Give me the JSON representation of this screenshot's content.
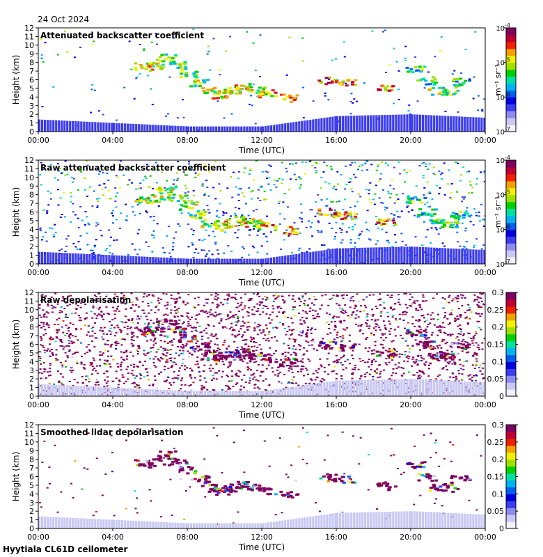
{
  "header": {
    "date": "24 Oct 2024"
  },
  "footer": {
    "station": "Hyytiala CL61D ceilometer"
  },
  "colormaps": {
    "rainbow": [
      "#f0f0f8",
      "#c8c8f4",
      "#8c8cf0",
      "#3c3cf0",
      "#0000e0",
      "#0060f0",
      "#00b4f0",
      "#00e0a0",
      "#00d000",
      "#a0e000",
      "#f0f000",
      "#f0a000",
      "#f02000",
      "#c00030",
      "#800060"
    ]
  },
  "colors": {
    "background": "#ffffff",
    "panel_bg": "#ffffff",
    "axis": "#000000"
  },
  "chart_data": [
    {
      "type": "heatmap",
      "title": "Attenuated backscatter coefficient",
      "xlabel": "Time (UTC)",
      "ylabel": "Height (km)",
      "xticks": [
        "00:00",
        "04:00",
        "08:00",
        "12:00",
        "16:00",
        "20:00",
        "00:00"
      ],
      "xlim_hours": [
        0,
        24
      ],
      "ylim": [
        0,
        12
      ],
      "yticks": [
        "0",
        "1",
        "2",
        "3",
        "4",
        "5",
        "6",
        "7",
        "8",
        "9",
        "10",
        "11",
        "12"
      ],
      "colorbar": {
        "scale": "log",
        "range": [
          1e-07,
          0.0001
        ],
        "ticks": [
          {
            "base": "10",
            "exp": "-4",
            "value": -4
          },
          {
            "base": "10",
            "exp": "-5",
            "value": -5
          },
          {
            "base": "10",
            "exp": "-6",
            "value": -6
          },
          {
            "base": "10",
            "exp": "-7",
            "value": -7
          }
        ],
        "label": "m⁻¹ sr⁻¹"
      },
      "cloud_layers": [
        {
          "hour": 5.6,
          "height": 7.6,
          "level": 0.82
        },
        {
          "hour": 6.2,
          "height": 7.7,
          "level": 0.82
        },
        {
          "hour": 6.8,
          "height": 8.6,
          "level": 0.8
        },
        {
          "hour": 7.4,
          "height": 7.8,
          "level": 0.78
        },
        {
          "hour": 8.0,
          "height": 6.8,
          "level": 0.75
        },
        {
          "hour": 8.6,
          "height": 5.8,
          "level": 0.75
        },
        {
          "hour": 9.2,
          "height": 4.8,
          "level": 0.8
        },
        {
          "hour": 9.8,
          "height": 4.4,
          "level": 0.85
        },
        {
          "hour": 10.4,
          "height": 4.8,
          "level": 0.85
        },
        {
          "hour": 11.0,
          "height": 5.2,
          "level": 0.85
        },
        {
          "hour": 11.6,
          "height": 4.8,
          "level": 0.85
        },
        {
          "hour": 12.2,
          "height": 4.5,
          "level": 0.9
        },
        {
          "hour": 13.4,
          "height": 4.0,
          "level": 0.95
        },
        {
          "hour": 15.5,
          "height": 6.0,
          "level": 0.95
        },
        {
          "hour": 16.5,
          "height": 5.7,
          "level": 0.95
        },
        {
          "hour": 18.6,
          "height": 5.0,
          "level": 0.95
        },
        {
          "hour": 20.2,
          "height": 7.4,
          "level": 0.7
        },
        {
          "hour": 20.8,
          "height": 6.0,
          "level": 0.7
        },
        {
          "hour": 21.4,
          "height": 4.8,
          "level": 0.75
        },
        {
          "hour": 22.0,
          "height": 4.8,
          "level": 0.75
        },
        {
          "hour": 22.6,
          "height": 5.8,
          "level": 0.7
        }
      ],
      "boundary_layer": [
        {
          "hour": 0,
          "height": 1.4
        },
        {
          "hour": 4,
          "height": 1.0
        },
        {
          "hour": 8,
          "height": 0.6
        },
        {
          "hour": 12,
          "height": 0.6
        },
        {
          "hour": 16,
          "height": 1.8
        },
        {
          "hour": 20,
          "height": 2.0
        },
        {
          "hour": 24,
          "height": 1.6
        }
      ]
    },
    {
      "type": "heatmap",
      "title": "Raw attenuated backscatter coefficient",
      "xlabel": "Time (UTC)",
      "ylabel": "Height (km)",
      "xticks": [
        "00:00",
        "04:00",
        "08:00",
        "12:00",
        "16:00",
        "20:00",
        "00:00"
      ],
      "xlim_hours": [
        0,
        24
      ],
      "ylim": [
        0,
        12
      ],
      "yticks": [
        "0",
        "1",
        "2",
        "3",
        "4",
        "5",
        "6",
        "7",
        "8",
        "9",
        "10",
        "11",
        "12"
      ],
      "colorbar": {
        "scale": "log",
        "range": [
          1e-07,
          0.0001
        ],
        "ticks": [
          {
            "base": "10",
            "exp": "-4",
            "value": -4
          },
          {
            "base": "10",
            "exp": "-5",
            "value": -5
          },
          {
            "base": "10",
            "exp": "-6",
            "value": -6
          },
          {
            "base": "10",
            "exp": "-7",
            "value": -7
          }
        ],
        "label": "m⁻¹ sr⁻¹"
      },
      "noise_level": 0.35
    },
    {
      "type": "heatmap",
      "title": "Raw depolarisation",
      "xlabel": "Time (UTC)",
      "ylabel": "Height (km)",
      "xticks": [
        "00:00",
        "04:00",
        "08:00",
        "12:00",
        "16:00",
        "20:00",
        "00:00"
      ],
      "xlim_hours": [
        0,
        24
      ],
      "ylim": [
        0,
        12
      ],
      "yticks": [
        "0",
        "1",
        "2",
        "3",
        "4",
        "5",
        "6",
        "7",
        "8",
        "9",
        "10",
        "11",
        "12"
      ],
      "colorbar": {
        "scale": "linear",
        "range": [
          0,
          0.3
        ],
        "ticks": [
          "0",
          "0.05",
          "0.1",
          "0.15",
          "0.2",
          "0.25",
          "0.3"
        ]
      },
      "noise_level": 0.95
    },
    {
      "type": "heatmap",
      "title": "Smoothed lidar depolarisation",
      "xlabel": "Time (UTC)",
      "ylabel": "Height (km)",
      "xticks": [
        "00:00",
        "04:00",
        "08:00",
        "12:00",
        "16:00",
        "20:00",
        "00:00"
      ],
      "xlim_hours": [
        0,
        24
      ],
      "ylim": [
        0,
        12
      ],
      "yticks": [
        "0",
        "1",
        "2",
        "3",
        "4",
        "5",
        "6",
        "7",
        "8",
        "9",
        "10",
        "11",
        "12"
      ],
      "colorbar": {
        "scale": "linear",
        "range": [
          0,
          0.3
        ],
        "ticks": [
          "0",
          "0.05",
          "0.1",
          "0.15",
          "0.2",
          "0.25",
          "0.3"
        ]
      },
      "noise_level": 0.05
    }
  ]
}
